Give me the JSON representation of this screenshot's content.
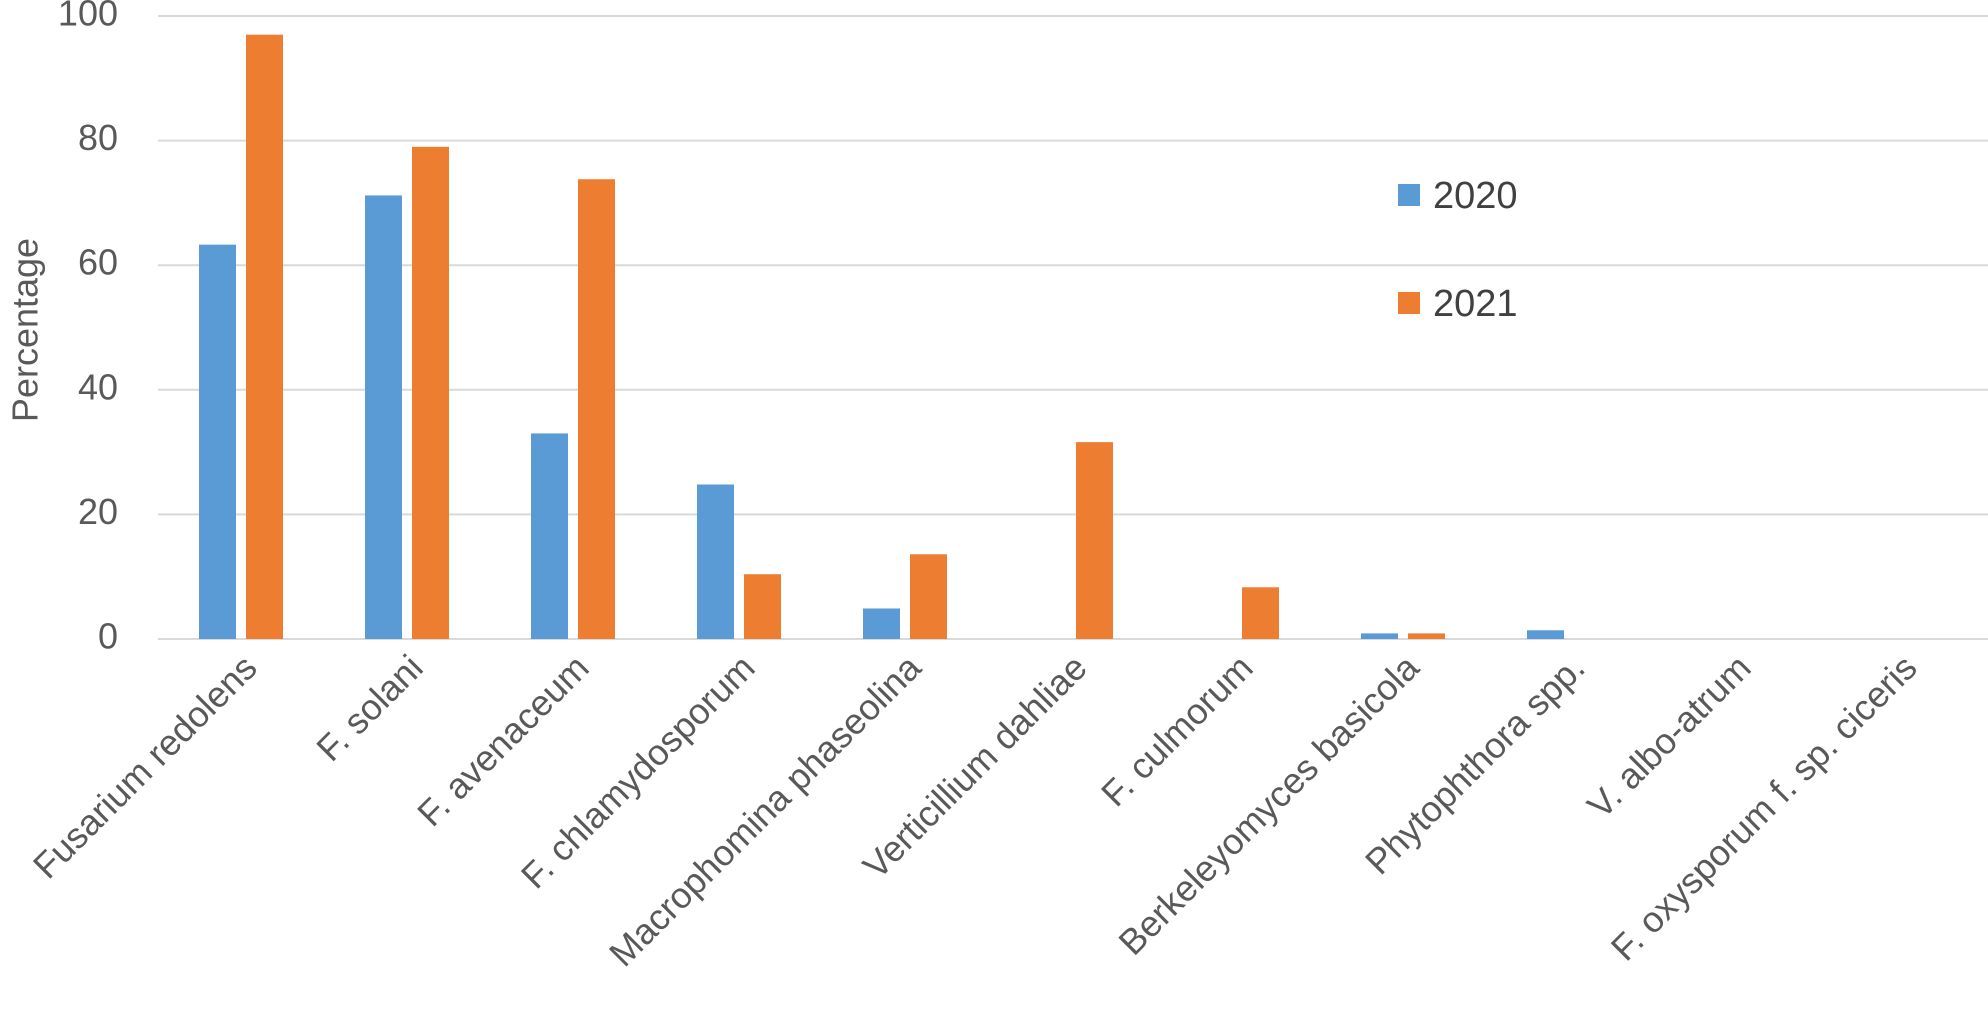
{
  "chart_data": {
    "type": "bar",
    "title": "",
    "xlabel": "",
    "ylabel": "Percentage",
    "ylim": [
      0,
      100
    ],
    "yticks": [
      0,
      20,
      40,
      60,
      80,
      100
    ],
    "grid": true,
    "legend_position": "top-right",
    "categories": [
      "Fusarium redolens",
      "F. solani",
      "F. avenaceum",
      "F. chlamydosporum",
      "Macrophomina phaseolina",
      "Verticillium dahliae",
      "F. culmorum",
      "Berkeleyomyces basicola",
      "Phytophthora spp.",
      "V. albo-atrum",
      "F. oxysporum f. sp. ciceris"
    ],
    "series": [
      {
        "name": "2020",
        "color": "#5B9BD5",
        "values": [
          63.3,
          71.2,
          33,
          24.8,
          4.9,
          0,
          0,
          0.9,
          1.4,
          0,
          0
        ]
      },
      {
        "name": "2021",
        "color": "#ED7D31",
        "values": [
          97,
          79,
          73.8,
          10.4,
          13.6,
          31.6,
          8.3,
          0.9,
          0,
          0,
          0
        ]
      }
    ]
  },
  "colors": {
    "gridline": "#D9D9D9",
    "text": "#595959"
  }
}
